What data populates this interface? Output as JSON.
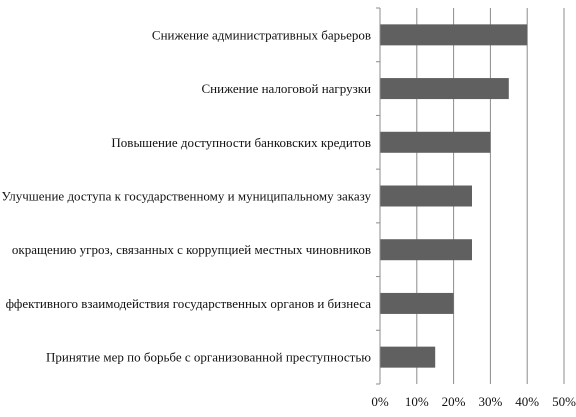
{
  "chart_data": {
    "type": "bar",
    "orientation": "horizontal",
    "title": "",
    "xlabel": "",
    "ylabel": "",
    "categories": [
      "Принятие мер по борьбе с организованной преступностью",
      "ффективного взаимодействия государственных органов и бизнеса",
      "окращению угроз, связанных с коррупцией местных чиновников",
      "Улучшение доступа к государственному и муниципальному заказу",
      "Повышение доступности банковских кредитов",
      "Снижение налоговой нагрузки",
      "Снижение административных барьеров"
    ],
    "values": [
      15,
      20,
      25,
      25,
      30,
      35,
      40
    ],
    "xlim": [
      0,
      50
    ],
    "x_ticks": [
      0,
      10,
      20,
      30,
      40,
      50
    ],
    "x_tick_labels": [
      "0%",
      "10%",
      "20%",
      "30%",
      "40%",
      "50%"
    ],
    "grid": true,
    "legend": "none",
    "colors": {
      "bar": "#606060",
      "grid": "#8c8c8c",
      "text": "#111111"
    }
  }
}
